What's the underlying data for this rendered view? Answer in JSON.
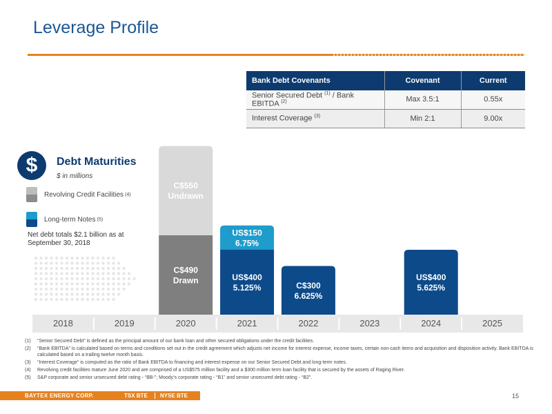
{
  "page": {
    "title": "Leverage Profile",
    "page_number": "15"
  },
  "covenants": {
    "headers": [
      "Bank Debt Covenants",
      "Covenant",
      "Current"
    ],
    "rows": [
      {
        "label": "Senior Secured Debt ",
        "sup1": "(1)",
        "mid": " / Bank EBITDA ",
        "sup2": "(2)",
        "covenant": "Max 3.5:1",
        "current": "0.55x"
      },
      {
        "label": "Interest Coverage ",
        "sup1": "(3)",
        "mid": "",
        "sup2": "",
        "covenant": "Min 2:1",
        "current": "9.00x"
      }
    ]
  },
  "maturities": {
    "icon": "dollar-icon",
    "title": "Debt Maturities",
    "subtitle": "$ in millions",
    "legend": [
      {
        "label": "Revolving Credit Facilities",
        "sup": "(4)",
        "color": "#8c8c8c"
      },
      {
        "label": "Long-term Notes",
        "sup": "(5)",
        "color": "#1e8fc7"
      }
    ],
    "net_debt_note": "Net debt totals $2.1 billion as at September 30, 2018"
  },
  "chart_data": {
    "type": "bar",
    "title": "Debt Maturities",
    "subtitle": "$ in millions",
    "categories": [
      "2018",
      "2019",
      "2020",
      "2021",
      "2022",
      "2023",
      "2024",
      "2025"
    ],
    "series": [
      {
        "name": "Revolving Credit Facilities",
        "stack": [
          {
            "year": "2020",
            "segment": "drawn",
            "value": 490,
            "label_line1": "C$490",
            "label_line2": "Drawn",
            "color": "#7f7f7f"
          },
          {
            "year": "2020",
            "segment": "undrawn",
            "value": 550,
            "label_line1": "C$550",
            "label_line2": "Undrawn",
            "color": "#d9d9d9"
          }
        ]
      },
      {
        "name": "Long-term Notes",
        "stack": [
          {
            "year": "2021",
            "segment": "base",
            "value": 400,
            "label_line1": "US$400",
            "label_line2": "5.125%",
            "color": "#0d4a8a"
          },
          {
            "year": "2021",
            "segment": "top",
            "value": 150,
            "label_line1": "US$150",
            "label_line2": "6.75%",
            "color": "#1e9ccc"
          },
          {
            "year": "2022",
            "segment": "base",
            "value": 300,
            "label_line1": "C$300",
            "label_line2": "6.625%",
            "color": "#0d4a8a"
          },
          {
            "year": "2024",
            "segment": "base",
            "value": 400,
            "label_line1": "US$400",
            "label_line2": "5.625%",
            "color": "#0d4a8a"
          }
        ]
      }
    ]
  },
  "footnotes": [
    {
      "num": "(1)",
      "text": "“Senior Secured Debt” is defined as the principal amount of our bank loan and other secured obligations under the credit facilities."
    },
    {
      "num": "(2)",
      "text": "“Bank EBITDA” is calculated based on terms and conditions set out in the credit agreement which adjusts net income for interest expense, income taxes, certain non-cash items and acquisition and disposition activity. Bank EBITDA is calculated based on a trailing twelve month basis."
    },
    {
      "num": "(3)",
      "text": "“Interest Coverage” is computed as the ratio of Bank EBITDA to financing and interest expense on our Senior Secured Debt and long-term notes."
    },
    {
      "num": "(4)",
      "text": "Revolving credit facilities mature June 2020 and are comprised of a US$575 million facility and a $300 million term loan facility that is secured by the assets of Raging River."
    },
    {
      "num": "(5)",
      "text": "S&P corporate and senior unsecured debt rating - “BB-”; Moody’s corporate rating - “B1” and senior unsecured debt rating - “B2”."
    }
  ],
  "footer": {
    "company": "BAYTEX ENERGY CORP.",
    "ticker1": "TSX BTE",
    "ticker2": "NYSE BTE",
    "bar_color": "#e6821e"
  }
}
